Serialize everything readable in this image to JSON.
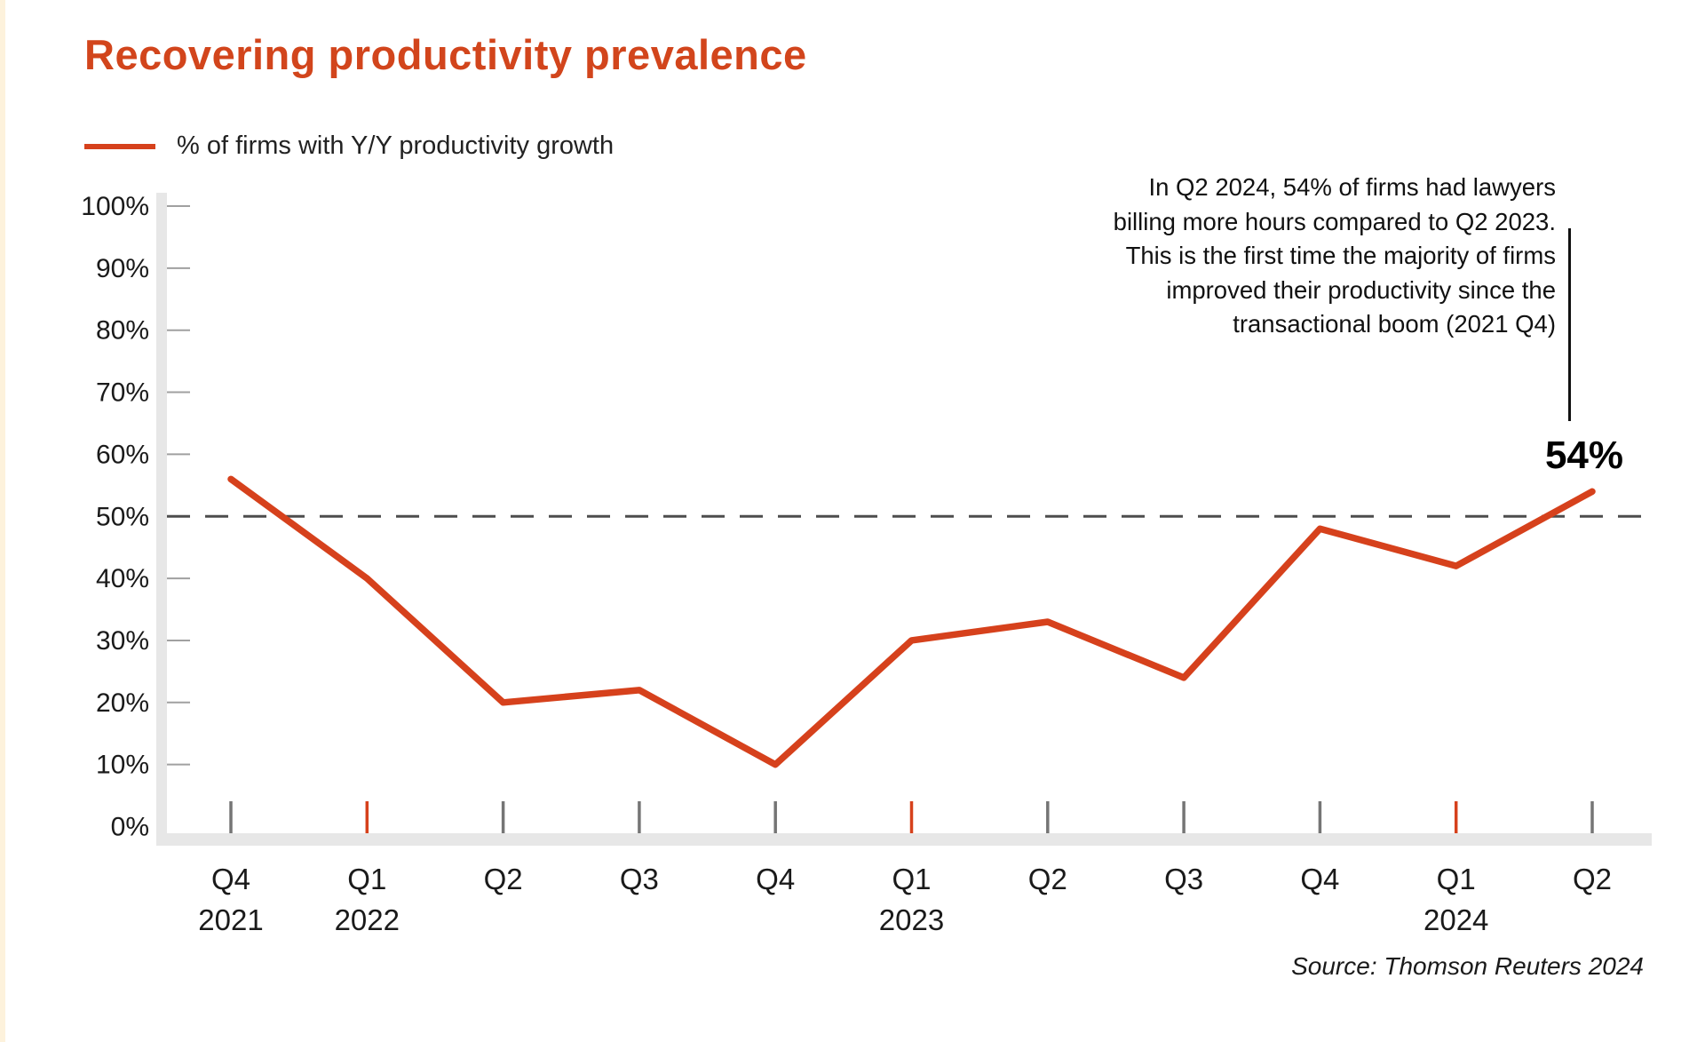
{
  "page": {
    "background": "#ffffff",
    "left_strip_color": "#fdf2dc"
  },
  "header": {
    "title": "Recovering productivity prevalence",
    "title_color": "#d2451c"
  },
  "legend": {
    "label": "% of firms with Y/Y productivity growth",
    "swatch_color": "#d6411c"
  },
  "annotation": {
    "lines": [
      "In Q2 2024, 54% of firms had lawyers",
      "billing more hours compared to Q2 2023.",
      "This is the first time the majority of firms",
      "improved their productivity since the",
      "transactional boom (2021 Q4)"
    ],
    "end_label": "54%"
  },
  "source": "Source: Thomson Reuters 2024",
  "chart_data": {
    "type": "line",
    "title": "Recovering productivity prevalence",
    "categories": [
      "Q4 2021",
      "Q1 2022",
      "Q2 2022",
      "Q3 2022",
      "Q4 2022",
      "Q1 2023",
      "Q2 2023",
      "Q3 2023",
      "Q4 2023",
      "Q1 2024",
      "Q2 2024"
    ],
    "x_tick_labels": [
      "Q4",
      "Q1",
      "Q2",
      "Q3",
      "Q4",
      "Q1",
      "Q2",
      "Q3",
      "Q4",
      "Q1",
      "Q2"
    ],
    "x_year_labels": [
      {
        "index": 0,
        "label": "2021"
      },
      {
        "index": 1,
        "label": "2022"
      },
      {
        "index": 5,
        "label": "2023"
      },
      {
        "index": 9,
        "label": "2024"
      }
    ],
    "year_start_indices": [
      1,
      5,
      9
    ],
    "series": [
      {
        "name": "% of firms with Y/Y productivity growth",
        "values": [
          56,
          40,
          20,
          22,
          10,
          30,
          33,
          24,
          48,
          42,
          54
        ]
      }
    ],
    "y_ticks": [
      "100%",
      "90%",
      "80%",
      "70%",
      "60%",
      "50%",
      "40%",
      "30%",
      "20%",
      "10%",
      "0%"
    ],
    "ylim": [
      0,
      100
    ],
    "reference_line": {
      "value": 50,
      "style": "dashed",
      "color": "#4d4d4d"
    },
    "grid": false,
    "legend_position": "top-left",
    "line_color": "#d6411c",
    "axis_bar_color": "#e7e7e7",
    "tick_color_default": "#757575",
    "tick_color_year_start": "#d6411c",
    "latest_point_label": "54%"
  }
}
